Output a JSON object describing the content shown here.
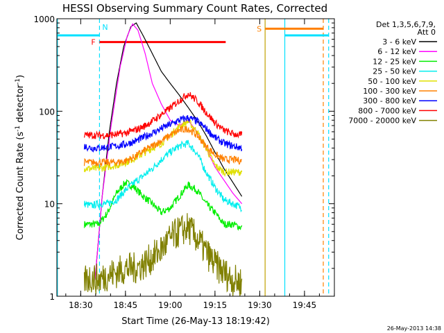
{
  "chart_data": {
    "type": "line",
    "title": "HESSI Observing Summary Count Rates, Corrected",
    "xlabel": "Start Time (26-May-13 18:19:42)",
    "ylabel_main": "Corrected Count Rate (s",
    "ylabel_sup1": "-1",
    "ylabel_mid": " detector",
    "ylabel_sup2": "-1",
    "ylabel_end": ")",
    "timestamp": "26-May-2013 14:38",
    "y_scale": "log",
    "xlim": [
      18.367,
      19.917
    ],
    "ylim": [
      1,
      1000
    ],
    "x_ticks": [
      {
        "t": 18.5,
        "label": "18:30"
      },
      {
        "t": 18.75,
        "label": "18:45"
      },
      {
        "t": 19.0,
        "label": "19:00"
      },
      {
        "t": 19.25,
        "label": "19:15"
      },
      {
        "t": 19.5,
        "label": "19:30"
      },
      {
        "t": 19.75,
        "label": "19:45"
      }
    ],
    "y_ticks": [
      {
        "v": 1,
        "label": "1"
      },
      {
        "v": 10,
        "label": "10"
      },
      {
        "v": 100,
        "label": "100"
      },
      {
        "v": 1000,
        "label": "1000"
      }
    ],
    "legend_header": [
      "Det 1,3,5,6,7,9,",
      "Att 0"
    ],
    "series": [
      {
        "name": "3 - 6 keV",
        "color": "#000000",
        "points": [
          [
            18.58,
            1.5
          ],
          [
            18.62,
            12
          ],
          [
            18.66,
            60
          ],
          [
            18.7,
            200
          ],
          [
            18.74,
            500
          ],
          [
            18.78,
            820
          ],
          [
            18.81,
            900
          ],
          [
            18.85,
            650
          ],
          [
            18.9,
            420
          ],
          [
            18.95,
            270
          ],
          [
            19.0,
            200
          ],
          [
            19.05,
            150
          ],
          [
            19.1,
            110
          ],
          [
            19.15,
            80
          ],
          [
            19.2,
            55
          ],
          [
            19.25,
            36
          ],
          [
            19.3,
            24
          ],
          [
            19.35,
            17
          ],
          [
            19.4,
            12
          ]
        ]
      },
      {
        "name": "6 - 12 keV",
        "color": "#ff00ff",
        "points": [
          [
            18.58,
            1.5
          ],
          [
            18.62,
            12
          ],
          [
            18.67,
            70
          ],
          [
            18.72,
            300
          ],
          [
            18.76,
            650
          ],
          [
            18.79,
            880
          ],
          [
            18.82,
            750
          ],
          [
            18.86,
            420
          ],
          [
            18.9,
            200
          ],
          [
            18.95,
            120
          ],
          [
            19.0,
            80
          ],
          [
            19.05,
            70
          ],
          [
            19.1,
            80
          ],
          [
            19.15,
            60
          ],
          [
            19.2,
            40
          ],
          [
            19.25,
            25
          ],
          [
            19.3,
            18
          ],
          [
            19.35,
            13
          ],
          [
            19.4,
            10
          ]
        ]
      },
      {
        "name": "12 - 25 keV",
        "color": "#00ee00",
        "points": [
          [
            18.52,
            6
          ],
          [
            18.56,
            6
          ],
          [
            18.6,
            6
          ],
          [
            18.65,
            8
          ],
          [
            18.7,
            13
          ],
          [
            18.75,
            17
          ],
          [
            18.8,
            15
          ],
          [
            18.85,
            12
          ],
          [
            18.9,
            10
          ],
          [
            18.95,
            8
          ],
          [
            19.0,
            9
          ],
          [
            19.05,
            12
          ],
          [
            19.1,
            16
          ],
          [
            19.15,
            14
          ],
          [
            19.2,
            10
          ],
          [
            19.25,
            8
          ],
          [
            19.3,
            6
          ],
          [
            19.35,
            6
          ],
          [
            19.4,
            5.5
          ]
        ]
      },
      {
        "name": "25 - 50 keV",
        "color": "#00eeee",
        "points": [
          [
            18.52,
            10
          ],
          [
            18.56,
            9.5
          ],
          [
            18.6,
            10
          ],
          [
            18.65,
            10
          ],
          [
            18.7,
            11
          ],
          [
            18.75,
            14
          ],
          [
            18.8,
            17
          ],
          [
            18.85,
            20
          ],
          [
            18.9,
            24
          ],
          [
            18.95,
            30
          ],
          [
            19.0,
            36
          ],
          [
            19.05,
            42
          ],
          [
            19.1,
            45
          ],
          [
            19.15,
            35
          ],
          [
            19.2,
            22
          ],
          [
            19.25,
            15
          ],
          [
            19.3,
            11
          ],
          [
            19.35,
            10
          ],
          [
            19.4,
            9
          ]
        ]
      },
      {
        "name": "50 - 100 keV",
        "color": "#e0e000",
        "points": [
          [
            18.52,
            24
          ],
          [
            18.56,
            24
          ],
          [
            18.6,
            24
          ],
          [
            18.65,
            25
          ],
          [
            18.7,
            26
          ],
          [
            18.75,
            28
          ],
          [
            18.8,
            31
          ],
          [
            18.85,
            35
          ],
          [
            18.9,
            40
          ],
          [
            18.95,
            45
          ],
          [
            19.0,
            55
          ],
          [
            19.05,
            68
          ],
          [
            19.1,
            78
          ],
          [
            19.15,
            60
          ],
          [
            19.2,
            40
          ],
          [
            19.25,
            26
          ],
          [
            19.3,
            22
          ],
          [
            19.35,
            22
          ],
          [
            19.4,
            22
          ]
        ]
      },
      {
        "name": "100 - 300 keV",
        "color": "#ff8000",
        "points": [
          [
            18.52,
            28
          ],
          [
            18.56,
            28
          ],
          [
            18.6,
            28
          ],
          [
            18.65,
            28
          ],
          [
            18.7,
            28
          ],
          [
            18.75,
            29
          ],
          [
            18.8,
            32
          ],
          [
            18.85,
            37
          ],
          [
            18.9,
            42
          ],
          [
            18.95,
            48
          ],
          [
            19.0,
            55
          ],
          [
            19.05,
            62
          ],
          [
            19.1,
            65
          ],
          [
            19.15,
            55
          ],
          [
            19.2,
            42
          ],
          [
            19.25,
            34
          ],
          [
            19.3,
            30
          ],
          [
            19.35,
            30
          ],
          [
            19.4,
            29
          ]
        ]
      },
      {
        "name": "300 - 800 keV",
        "color": "#0000ff",
        "points": [
          [
            18.52,
            42
          ],
          [
            18.56,
            40
          ],
          [
            18.6,
            40
          ],
          [
            18.65,
            41
          ],
          [
            18.7,
            42
          ],
          [
            18.75,
            44
          ],
          [
            18.8,
            47
          ],
          [
            18.85,
            52
          ],
          [
            18.9,
            58
          ],
          [
            18.95,
            65
          ],
          [
            19.0,
            72
          ],
          [
            19.05,
            80
          ],
          [
            19.1,
            85
          ],
          [
            19.15,
            78
          ],
          [
            19.2,
            65
          ],
          [
            19.25,
            52
          ],
          [
            19.3,
            45
          ],
          [
            19.35,
            42
          ],
          [
            19.4,
            40
          ]
        ]
      },
      {
        "name": "800 - 7000 keV",
        "color": "#ff0000",
        "points": [
          [
            18.52,
            55
          ],
          [
            18.56,
            55
          ],
          [
            18.6,
            55
          ],
          [
            18.65,
            55
          ],
          [
            18.7,
            56
          ],
          [
            18.75,
            58
          ],
          [
            18.8,
            62
          ],
          [
            18.85,
            68
          ],
          [
            18.9,
            78
          ],
          [
            18.95,
            92
          ],
          [
            19.0,
            108
          ],
          [
            19.05,
            130
          ],
          [
            19.1,
            155
          ],
          [
            19.15,
            130
          ],
          [
            19.2,
            98
          ],
          [
            19.25,
            75
          ],
          [
            19.3,
            62
          ],
          [
            19.35,
            57
          ],
          [
            19.4,
            55
          ]
        ]
      },
      {
        "name": "7000 - 20000 keV",
        "color": "#808000",
        "points": [
          [
            18.52,
            1.5
          ],
          [
            18.56,
            1.6
          ],
          [
            18.6,
            1.5
          ],
          [
            18.65,
            1.7
          ],
          [
            18.7,
            1.8
          ],
          [
            18.75,
            2
          ],
          [
            18.8,
            2
          ],
          [
            18.85,
            2.2
          ],
          [
            18.9,
            2.6
          ],
          [
            18.95,
            3.2
          ],
          [
            19.0,
            4.2
          ],
          [
            19.05,
            5
          ],
          [
            19.1,
            5.5
          ],
          [
            19.15,
            4.2
          ],
          [
            19.2,
            3
          ],
          [
            19.25,
            2.2
          ],
          [
            19.3,
            1.8
          ],
          [
            19.35,
            1.5
          ],
          [
            19.4,
            1.4
          ]
        ]
      }
    ],
    "spans": [
      {
        "name": "",
        "label": "",
        "color": "#00e0ff",
        "from": 18.367,
        "to": 18.605,
        "level": 660,
        "dashed_end": true
      },
      {
        "name": "",
        "label": "",
        "color": "#00e0ff",
        "from": 19.64,
        "to": 19.885,
        "level": 660,
        "dashed_end": true
      },
      {
        "name": "",
        "label": "N",
        "color": "#00e0ff",
        "from": 18.605,
        "to": 18.605,
        "level": 660
      },
      {
        "name": "",
        "label": "F",
        "color": "#ff0000",
        "from": 18.605,
        "to": 19.31,
        "level": 560
      },
      {
        "name": "",
        "label": "S",
        "color": "#ff8000",
        "from": 19.53,
        "to": 19.855,
        "level": 780,
        "dashed_end": true
      }
    ],
    "verticals": [
      {
        "t": 18.37,
        "color": "#00e0ff",
        "style": "solid"
      },
      {
        "t": 18.605,
        "color": "#00e0ff",
        "style": "dashed"
      },
      {
        "t": 19.53,
        "color": "#c0a000",
        "style": "solid"
      },
      {
        "t": 19.64,
        "color": "#00e0ff",
        "style": "solid"
      },
      {
        "t": 19.855,
        "color": "#ff8000",
        "style": "dashed"
      },
      {
        "t": 19.885,
        "color": "#00e0ff",
        "style": "dashed"
      }
    ]
  }
}
